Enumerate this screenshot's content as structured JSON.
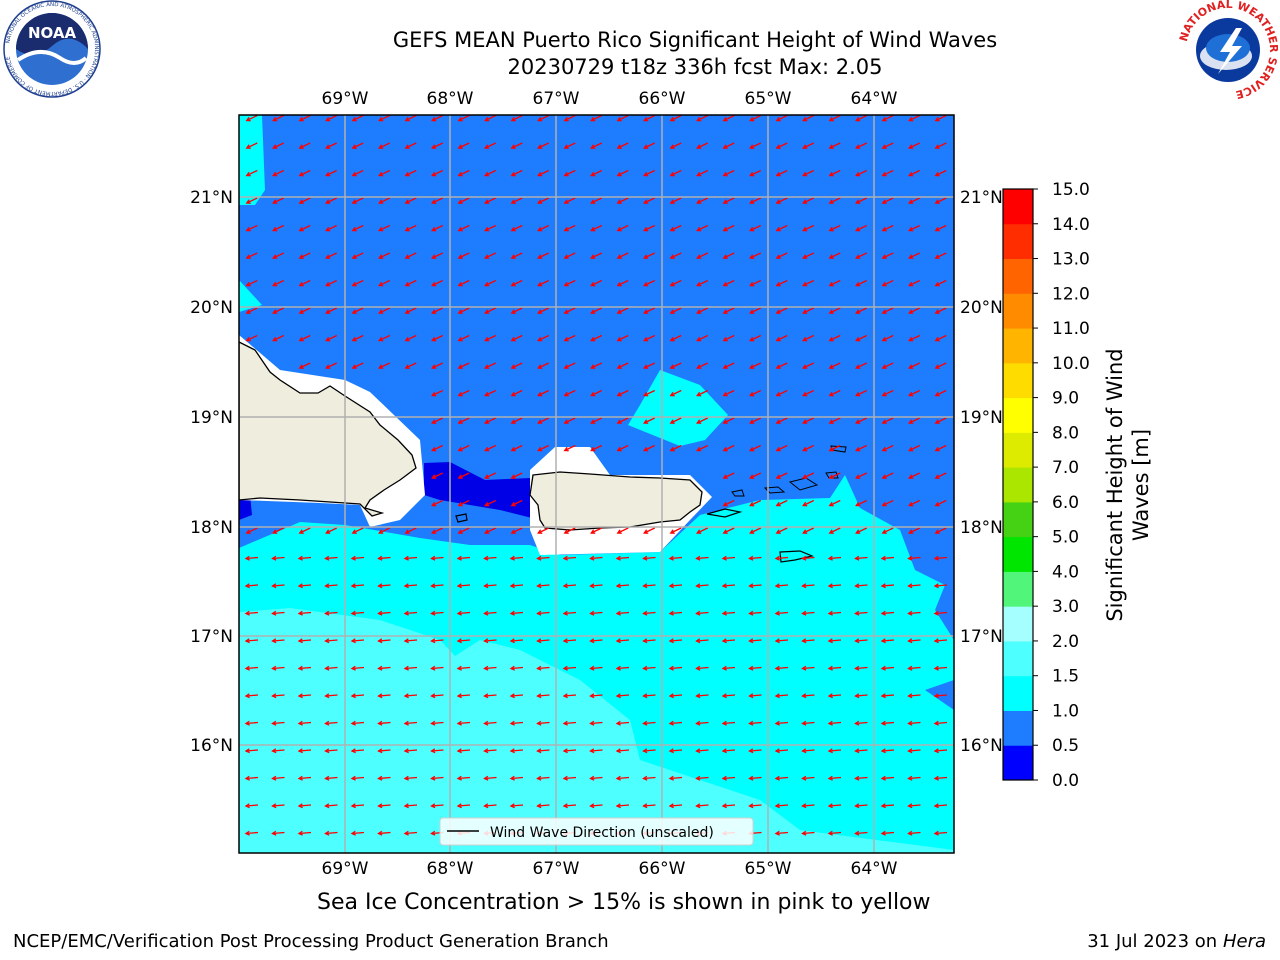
{
  "header": {
    "title_line1": "GEFS MEAN Puerto Rico Significant Height of Wind Waves",
    "title_line2": "20230729 t18z 336h fcst   Max: 2.05"
  },
  "logos": {
    "left": "NOAA",
    "left_ring_text": "NATIONAL OCEANIC AND ATMOSPHERIC ADMINISTRATION · U.S. DEPARTMENT OF COMMERCE",
    "right_ring_text": "NATIONAL WEATHER SERVICE"
  },
  "map": {
    "lon_labels": [
      "69°W",
      "68°W",
      "67°W",
      "66°W",
      "65°W",
      "64°W"
    ],
    "lat_labels": [
      "21°N",
      "20°N",
      "19°N",
      "18°N",
      "17°N",
      "16°N"
    ],
    "legend_label": "Wind Wave Direction (unscaled)",
    "colors": {
      "land": "#efedde",
      "coastline": "#000000",
      "arrow": "#ff0000",
      "grid": "#b0b0b0"
    }
  },
  "colorbar": {
    "title": "Significant Height of Wind Waves [m]",
    "tick_labels": [
      "0.0",
      "0.5",
      "1.0",
      "1.5",
      "2.0",
      "3.0",
      "4.0",
      "5.0",
      "6.0",
      "7.0",
      "8.0",
      "9.0",
      "10.0",
      "11.0",
      "12.0",
      "13.0",
      "14.0",
      "15.0"
    ],
    "colors": [
      "#0000ff",
      "#1e7dff",
      "#00ffff",
      "#4dffff",
      "#a6ffff",
      "#50f57a",
      "#00e600",
      "#46d214",
      "#aae600",
      "#dceb00",
      "#ffff00",
      "#ffdc00",
      "#ffb400",
      "#ff8c00",
      "#ff6400",
      "#ff2d00",
      "#ff0000"
    ]
  },
  "caption": "Sea Ice Concentration > 15% is shown in pink to yellow",
  "footer": {
    "left": "NCEP/EMC/Verification Post Processing Product Generation Branch",
    "right_prefix": "31 Jul 2023 on ",
    "right_machine": "Hera"
  }
}
